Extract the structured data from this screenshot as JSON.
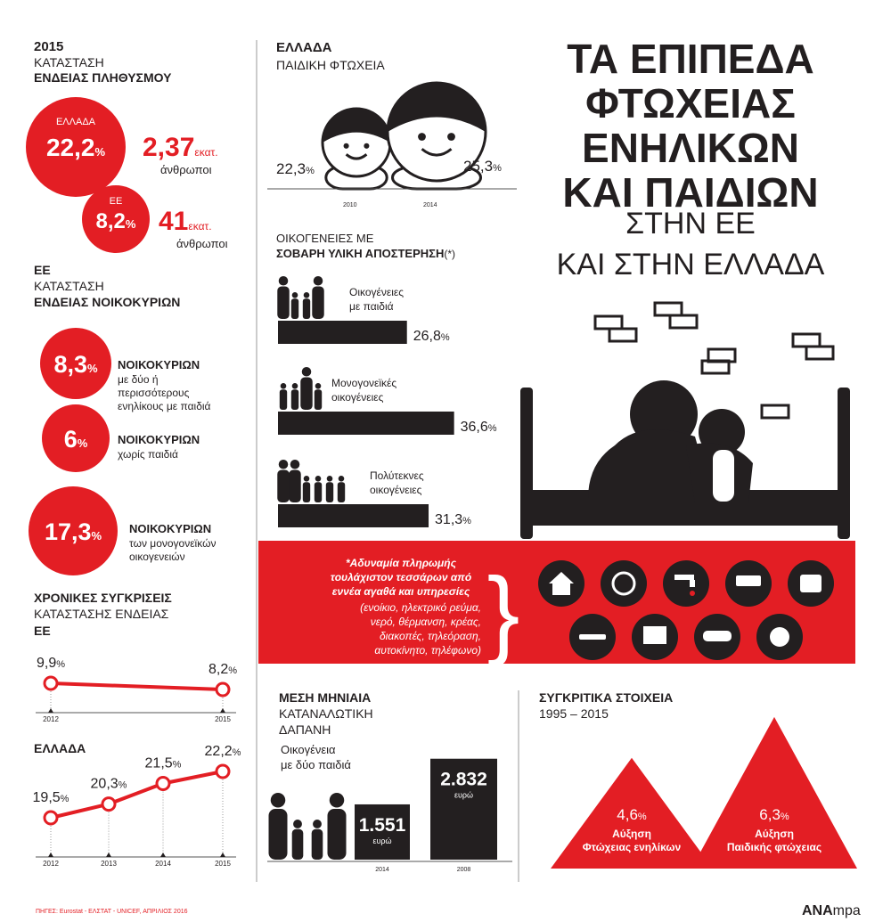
{
  "title": {
    "lines": [
      "ΤΑ ΕΠΙΠΕΔΑ",
      "ΦΤΩΧΕΙΑΣ",
      "ΕΝΗΛΙΚΩΝ",
      "ΚΑΙ ΠΑΙΔΙΩΝ"
    ],
    "sub": [
      "ΣΤΗΝ ΕΕ",
      "ΚΑΙ ΣΤΗΝ ΕΛΛΑΔΑ"
    ]
  },
  "population": {
    "year": "2015",
    "label": "ΚΑΤΑΣΤΑΣΗ",
    "heading": "ΕΝΔΕΙΑΣ ΠΛΗΘΥΣΜΟΥ",
    "unit": "%",
    "items": [
      {
        "region": "ΕΛΛΑΔΑ",
        "percent": "22,2",
        "count": "2,37",
        "count_unit": "εκατ.",
        "people": "άνθρωποι"
      },
      {
        "region": "ΕΕ",
        "percent": "8,2",
        "count": "41",
        "count_unit": "εκατ.",
        "people": "άνθρωποι"
      }
    ]
  },
  "households": {
    "region": "ΕΕ",
    "label": "ΚΑΤΑΣΤΑΣΗ",
    "heading": "ΕΝΔΕΙΑΣ ΝΟΙΚΟΚΥΡΙΩΝ",
    "unit": "%",
    "items": [
      {
        "percent": "8,3",
        "name": "ΝΟΙΚΟΚΥΡΙΩΝ",
        "desc": [
          "με δύο ή",
          "περισσότερους",
          "ενηλίκους με παιδιά"
        ]
      },
      {
        "percent": "6",
        "name": "ΝΟΙΚΟΚΥΡΙΩΝ",
        "desc": [
          "χωρίς παιδιά"
        ]
      },
      {
        "percent": "17,3",
        "name": "ΝΟΙΚΟΚΥΡΙΩΝ",
        "desc": [
          "των μονογονεϊκών",
          "οικογενειών"
        ]
      }
    ]
  },
  "trends": {
    "heading": "ΧΡΟΝΙΚΕΣ ΣΥΓΚΡΙΣΕΙΣ",
    "label": "ΚΑΤΑΣΤΑΣΗΣ ΕΝΔΕΙΑΣ",
    "unit": "%",
    "charts": [
      {
        "title": "ΕΕ",
        "categories": [
          "2012",
          "2015"
        ],
        "values": [
          9.9,
          8.2
        ],
        "value_labels": [
          "9,9",
          "8,2"
        ]
      },
      {
        "title": "ΕΛΛΑΔΑ",
        "categories": [
          "2012",
          "2013",
          "2014",
          "2015"
        ],
        "values": [
          19.5,
          20.3,
          21.5,
          22.2
        ],
        "value_labels": [
          "19,5",
          "20,3",
          "21,5",
          "22,2"
        ]
      }
    ]
  },
  "child_poverty": {
    "region": "ΕΛΛΑΔΑ",
    "label": "ΠΑΙΔΙΚΗ ΦΤΩΧΕΙΑ",
    "unit": "%",
    "items": [
      {
        "year": "2010",
        "percent": "22,3"
      },
      {
        "year": "2014",
        "percent": "25,3"
      }
    ]
  },
  "deprivation": {
    "heading": "ΟΙΚΟΓΕΝΕΙΕΣ ΜΕ",
    "subheading": "ΣΟΒΑΡΗ ΥΛΙΚΗ ΑΠΟΣΤΕΡΗΣΗ",
    "note_mark": "(*)",
    "unit": "%",
    "items": [
      {
        "label": [
          "Οικογένειες",
          "με παιδιά"
        ],
        "value": 26.8,
        "value_label": "26,8"
      },
      {
        "label": [
          "Μονογονεϊκές",
          "οικογένειες"
        ],
        "value": 36.6,
        "value_label": "36,6"
      },
      {
        "label": [
          "Πολύτεκνες",
          "οικογένειες"
        ],
        "value": 31.3,
        "value_label": "31,3"
      }
    ]
  },
  "note": {
    "title": [
      "*Αδυναμία πληρωμής",
      "τουλάχιστον τεσσάρων από",
      "εννέα αγαθά και υπηρεσίες"
    ],
    "items": [
      "(ενοίκιο, ηλεκτρικό ρεύμα,",
      "νερό, θέρμανση, κρέας,",
      "διακοπές, τηλεόραση,",
      "αυτοκίνητο, τηλέφωνο)"
    ]
  },
  "spending": {
    "heading": "ΜΕΣΗ ΜΗΝΙΑΙΑ",
    "label": [
      "ΚΑΤΑΝΑΛΩΤΙΚΗ",
      "ΔΑΠΑΝΗ"
    ],
    "family": [
      "Οικογένεια",
      "με δύο παιδιά"
    ],
    "items": [
      {
        "year": "2014",
        "value": 1551,
        "value_label": "1.551",
        "unit": "ευρώ"
      },
      {
        "year": "2008",
        "value": 2832,
        "value_label": "2.832",
        "unit": "ευρώ"
      }
    ]
  },
  "comparison": {
    "heading": "ΣΥΓΚΡΙΤΙΚΑ ΣΤΟΙΧΕΙΑ",
    "period": "1995 – 2015",
    "unit": "%",
    "items": [
      {
        "value": 4.6,
        "value_label": "4,6",
        "label": [
          "Αύξηση",
          "Φτώχειας ενηλίκων"
        ]
      },
      {
        "value": 6.3,
        "value_label": "6,3",
        "label": [
          "Αύξηση",
          "Παιδικής φτώχειας"
        ]
      }
    ]
  },
  "footer": {
    "source": "ΠΗΓΕΣ: Eurostat - ΕΛΣΤΑΤ - UNICEF, ΑΠΡΙΛΙΟΣ 2016",
    "logo_a": "ANA",
    "logo_b": "mpa"
  }
}
